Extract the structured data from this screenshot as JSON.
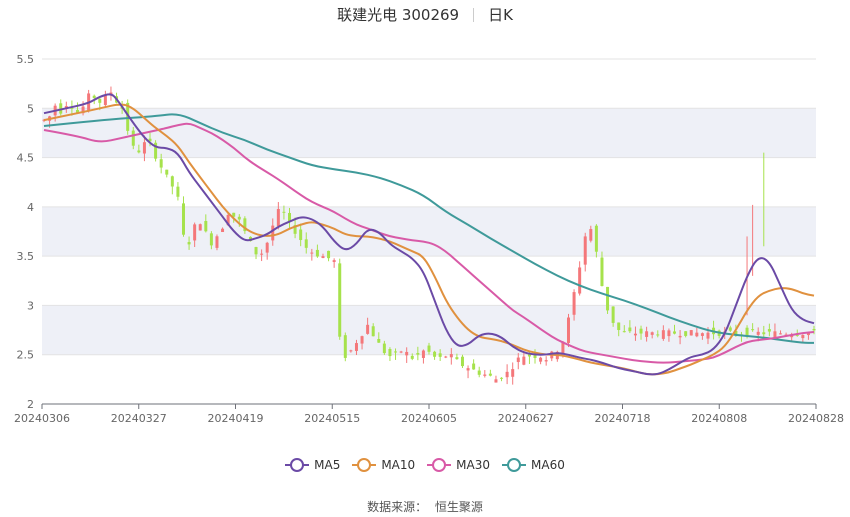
{
  "header": {
    "title": "联建光电 300269",
    "period": "日K"
  },
  "colors": {
    "up": "#f4777a",
    "down": "#a6e24c",
    "ma5": "#6b4aa6",
    "ma10": "#e0913f",
    "ma30": "#d85aa7",
    "ma60": "#3f9a9a",
    "band": "#eef0f7",
    "grid": "#e3e3e3"
  },
  "legend": [
    {
      "name": "MA5",
      "color_key": "ma5",
      "icon": "circle-icon"
    },
    {
      "name": "MA10",
      "color_key": "ma10",
      "icon": "circle-icon"
    },
    {
      "name": "MA30",
      "color_key": "ma30",
      "icon": "circle-icon"
    },
    {
      "name": "MA60",
      "color_key": "ma60",
      "icon": "circle-icon"
    }
  ],
  "source": {
    "label": "数据来源：",
    "name": "恒生聚源"
  },
  "chart_data": {
    "type": "candlestick",
    "ylim": [
      2,
      5.5
    ],
    "y_ticks": [
      "2",
      "2.5",
      "3",
      "3.5",
      "4",
      "4.5",
      "5",
      "5.5"
    ],
    "x_ticks": [
      "20240306",
      "20240327",
      "20240419",
      "20240515",
      "20240605",
      "20240627",
      "20240718",
      "20240808",
      "20240828"
    ],
    "ohlc_segments": [
      {
        "from": 0,
        "to": 14,
        "values": [
          4.88,
          4.92,
          5.05,
          4.95,
          5.08,
          5.0,
          4.93,
          5.1,
          5.15,
          5.05,
          5.1,
          5.18,
          5.08,
          5.0
        ]
      },
      {
        "from": 14,
        "to": 22,
        "values": [
          5.0,
          4.75,
          4.55,
          4.58,
          4.7,
          4.55,
          4.42,
          4.3
        ]
      },
      {
        "from": 22,
        "to": 32,
        "values": [
          4.3,
          4.2,
          4.05,
          3.55,
          3.7,
          3.9,
          3.78,
          3.62,
          3.7,
          3.8
        ]
      },
      {
        "from": 32,
        "to": 52,
        "values": [
          3.8,
          3.95,
          3.9,
          3.85,
          3.72,
          3.6,
          3.5,
          3.55,
          3.7,
          3.9,
          4.0,
          3.85,
          3.78,
          3.7,
          3.6,
          3.55,
          3.52,
          3.5,
          3.48,
          3.45
        ]
      },
      {
        "from": 52,
        "to": 58,
        "values": [
          3.45,
          2.5,
          2.48,
          2.6,
          2.7,
          2.8
        ]
      },
      {
        "from": 58,
        "to": 82,
        "values": [
          2.8,
          2.7,
          2.6,
          2.52,
          2.48,
          2.5,
          2.55,
          2.5,
          2.45,
          2.52,
          2.55,
          2.5,
          2.45,
          2.48,
          2.5,
          2.45,
          2.4,
          2.38,
          2.35,
          2.32,
          2.3,
          2.28,
          2.25,
          2.28
        ]
      },
      {
        "from": 82,
        "to": 92,
        "values": [
          2.28,
          2.32,
          2.4,
          2.48,
          2.5,
          2.48,
          2.5,
          2.45,
          2.5,
          2.55
        ]
      },
      {
        "from": 92,
        "to": 104,
        "values": [
          2.55,
          2.65,
          2.9,
          3.2,
          3.5,
          3.85,
          3.7,
          3.3,
          3.0,
          2.85,
          2.75,
          2.72
        ]
      }
    ],
    "ma_series": {
      "ma5": [
        [
          0,
          4.95
        ],
        [
          4,
          5.0
        ],
        [
          8,
          5.05
        ],
        [
          10,
          5.12
        ],
        [
          12,
          5.15
        ],
        [
          13,
          5.1
        ],
        [
          16,
          4.85
        ],
        [
          18,
          4.7
        ],
        [
          20,
          4.6
        ],
        [
          22,
          4.6
        ],
        [
          24,
          4.55
        ],
        [
          26,
          4.35
        ],
        [
          28,
          4.2
        ],
        [
          30,
          4.05
        ],
        [
          32,
          3.9
        ],
        [
          34,
          3.75
        ],
        [
          36,
          3.65
        ],
        [
          38,
          3.68
        ],
        [
          40,
          3.72
        ],
        [
          42,
          3.8
        ],
        [
          44,
          3.85
        ],
        [
          46,
          3.9
        ],
        [
          48,
          3.88
        ],
        [
          50,
          3.8
        ],
        [
          52,
          3.65
        ],
        [
          54,
          3.55
        ],
        [
          56,
          3.62
        ],
        [
          58,
          3.78
        ],
        [
          60,
          3.75
        ],
        [
          62,
          3.62
        ],
        [
          64,
          3.55
        ],
        [
          66,
          3.48
        ],
        [
          68,
          3.35
        ],
        [
          70,
          3.05
        ],
        [
          72,
          2.75
        ],
        [
          74,
          2.58
        ],
        [
          76,
          2.6
        ],
        [
          78,
          2.7
        ],
        [
          80,
          2.72
        ],
        [
          82,
          2.68
        ],
        [
          84,
          2.58
        ],
        [
          86,
          2.52
        ],
        [
          88,
          2.5
        ],
        [
          90,
          2.5
        ],
        [
          92,
          2.52
        ],
        [
          94,
          2.5
        ],
        [
          96,
          2.47
        ],
        [
          98,
          2.45
        ],
        [
          100,
          2.42
        ],
        [
          102,
          2.38
        ],
        [
          104,
          2.35
        ],
        [
          106,
          2.33
        ],
        [
          108,
          2.3
        ],
        [
          110,
          2.3
        ],
        [
          112,
          2.35
        ],
        [
          114,
          2.42
        ],
        [
          116,
          2.48
        ],
        [
          118,
          2.5
        ],
        [
          120,
          2.55
        ],
        [
          122,
          2.7
        ],
        [
          124,
          3.0
        ],
        [
          126,
          3.3
        ],
        [
          128,
          3.5
        ],
        [
          130,
          3.45
        ],
        [
          132,
          3.2
        ],
        [
          134,
          2.95
        ],
        [
          136,
          2.85
        ],
        [
          138,
          2.82
        ]
      ],
      "ma10": [
        [
          0,
          4.88
        ],
        [
          6,
          4.95
        ],
        [
          10,
          5.0
        ],
        [
          14,
          5.05
        ],
        [
          16,
          5.0
        ],
        [
          18,
          4.9
        ],
        [
          20,
          4.8
        ],
        [
          22,
          4.72
        ],
        [
          24,
          4.62
        ],
        [
          26,
          4.45
        ],
        [
          28,
          4.3
        ],
        [
          30,
          4.15
        ],
        [
          32,
          4.0
        ],
        [
          34,
          3.88
        ],
        [
          36,
          3.78
        ],
        [
          38,
          3.72
        ],
        [
          40,
          3.7
        ],
        [
          42,
          3.72
        ],
        [
          44,
          3.78
        ],
        [
          46,
          3.82
        ],
        [
          48,
          3.85
        ],
        [
          50,
          3.82
        ],
        [
          52,
          3.78
        ],
        [
          54,
          3.72
        ],
        [
          56,
          3.7
        ],
        [
          58,
          3.7
        ],
        [
          60,
          3.68
        ],
        [
          62,
          3.65
        ],
        [
          64,
          3.6
        ],
        [
          66,
          3.55
        ],
        [
          68,
          3.5
        ],
        [
          70,
          3.3
        ],
        [
          72,
          3.05
        ],
        [
          74,
          2.88
        ],
        [
          76,
          2.75
        ],
        [
          78,
          2.68
        ],
        [
          80,
          2.66
        ],
        [
          82,
          2.64
        ],
        [
          84,
          2.6
        ],
        [
          86,
          2.55
        ],
        [
          88,
          2.52
        ],
        [
          90,
          2.5
        ],
        [
          92,
          2.5
        ],
        [
          94,
          2.48
        ],
        [
          96,
          2.45
        ],
        [
          98,
          2.42
        ],
        [
          100,
          2.4
        ],
        [
          102,
          2.38
        ],
        [
          104,
          2.36
        ],
        [
          106,
          2.33
        ],
        [
          108,
          2.3
        ],
        [
          110,
          2.3
        ],
        [
          112,
          2.32
        ],
        [
          114,
          2.36
        ],
        [
          116,
          2.4
        ],
        [
          118,
          2.45
        ],
        [
          120,
          2.5
        ],
        [
          122,
          2.58
        ],
        [
          124,
          2.75
        ],
        [
          126,
          2.95
        ],
        [
          128,
          3.1
        ],
        [
          130,
          3.15
        ],
        [
          132,
          3.18
        ],
        [
          134,
          3.17
        ],
        [
          136,
          3.12
        ],
        [
          138,
          3.1
        ]
      ],
      "ma30": [
        [
          0,
          4.78
        ],
        [
          6,
          4.72
        ],
        [
          10,
          4.65
        ],
        [
          14,
          4.7
        ],
        [
          18,
          4.75
        ],
        [
          22,
          4.8
        ],
        [
          24,
          4.83
        ],
        [
          26,
          4.85
        ],
        [
          28,
          4.8
        ],
        [
          30,
          4.75
        ],
        [
          32,
          4.68
        ],
        [
          34,
          4.6
        ],
        [
          36,
          4.5
        ],
        [
          38,
          4.42
        ],
        [
          40,
          4.35
        ],
        [
          42,
          4.28
        ],
        [
          44,
          4.2
        ],
        [
          46,
          4.12
        ],
        [
          48,
          4.05
        ],
        [
          50,
          4.0
        ],
        [
          52,
          3.95
        ],
        [
          54,
          3.88
        ],
        [
          56,
          3.82
        ],
        [
          58,
          3.78
        ],
        [
          60,
          3.74
        ],
        [
          62,
          3.7
        ],
        [
          64,
          3.68
        ],
        [
          66,
          3.66
        ],
        [
          68,
          3.65
        ],
        [
          70,
          3.62
        ],
        [
          72,
          3.55
        ],
        [
          74,
          3.45
        ],
        [
          76,
          3.35
        ],
        [
          78,
          3.25
        ],
        [
          80,
          3.15
        ],
        [
          82,
          3.05
        ],
        [
          84,
          2.95
        ],
        [
          86,
          2.88
        ],
        [
          88,
          2.8
        ],
        [
          90,
          2.72
        ],
        [
          92,
          2.65
        ],
        [
          94,
          2.6
        ],
        [
          96,
          2.55
        ],
        [
          98,
          2.52
        ],
        [
          100,
          2.5
        ],
        [
          102,
          2.48
        ],
        [
          104,
          2.46
        ],
        [
          106,
          2.44
        ],
        [
          108,
          2.43
        ],
        [
          110,
          2.42
        ],
        [
          112,
          2.42
        ],
        [
          114,
          2.43
        ],
        [
          116,
          2.44
        ],
        [
          118,
          2.45
        ],
        [
          120,
          2.47
        ],
        [
          122,
          2.52
        ],
        [
          124,
          2.58
        ],
        [
          126,
          2.63
        ],
        [
          128,
          2.65
        ],
        [
          130,
          2.66
        ],
        [
          132,
          2.68
        ],
        [
          134,
          2.7
        ],
        [
          136,
          2.72
        ],
        [
          138,
          2.73
        ]
      ],
      "ma60": [
        [
          0,
          4.82
        ],
        [
          10,
          4.88
        ],
        [
          20,
          4.92
        ],
        [
          24,
          4.95
        ],
        [
          28,
          4.85
        ],
        [
          32,
          4.75
        ],
        [
          36,
          4.68
        ],
        [
          40,
          4.58
        ],
        [
          44,
          4.5
        ],
        [
          48,
          4.42
        ],
        [
          52,
          4.38
        ],
        [
          56,
          4.35
        ],
        [
          60,
          4.3
        ],
        [
          64,
          4.22
        ],
        [
          68,
          4.12
        ],
        [
          72,
          3.95
        ],
        [
          76,
          3.82
        ],
        [
          80,
          3.68
        ],
        [
          84,
          3.55
        ],
        [
          88,
          3.42
        ],
        [
          92,
          3.3
        ],
        [
          96,
          3.2
        ],
        [
          100,
          3.12
        ],
        [
          104,
          3.05
        ],
        [
          108,
          2.97
        ],
        [
          112,
          2.88
        ],
        [
          116,
          2.8
        ],
        [
          120,
          2.73
        ],
        [
          124,
          2.7
        ],
        [
          128,
          2.68
        ],
        [
          132,
          2.65
        ],
        [
          136,
          2.62
        ],
        [
          138,
          2.62
        ]
      ]
    }
  }
}
